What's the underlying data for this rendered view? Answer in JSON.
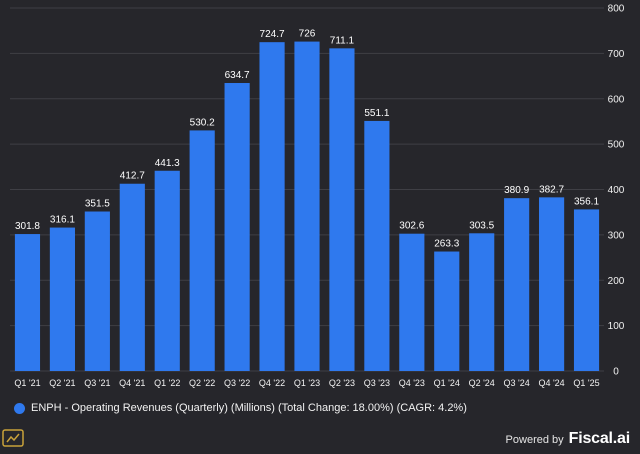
{
  "chart_data": {
    "type": "bar",
    "categories": [
      "Q1 '21",
      "Q2 '21",
      "Q3 '21",
      "Q4 '21",
      "Q1 '22",
      "Q2 '22",
      "Q3 '22",
      "Q4 '22",
      "Q1 '23",
      "Q2 '23",
      "Q3 '23",
      "Q4 '23",
      "Q1 '24",
      "Q2 '24",
      "Q3 '24",
      "Q4 '24",
      "Q1 '25"
    ],
    "values": [
      301.8,
      316.1,
      351.5,
      412.7,
      441.3,
      530.2,
      634.7,
      724.7,
      726,
      711.1,
      551.1,
      302.6,
      263.3,
      303.5,
      380.9,
      382.7,
      356.1
    ],
    "value_labels": [
      "301.8",
      "316.1",
      "351.5",
      "412.7",
      "441.3",
      "530.2",
      "634.7",
      "724.7",
      "726",
      "711.1",
      "551.1",
      "302.6",
      "263.3",
      "303.5",
      "380.9",
      "382.7",
      "356.1"
    ],
    "yticks": [
      "0",
      "100",
      "200",
      "300",
      "400",
      "500",
      "600",
      "700",
      "800"
    ],
    "ylim": [
      0,
      800
    ],
    "y_axis_side": "right",
    "grid": true,
    "bar_color": "#2f79ee",
    "legend": {
      "label": "ENPH - Operating Revenues (Quarterly) (Millions) (Total Change: 18.00%) (CAGR: 4.2%)",
      "position": "bottom-left"
    }
  },
  "footer": {
    "powered_by": "Powered by",
    "brand": "Fiscal.ai"
  },
  "colors": {
    "background": "#26262b",
    "grid": "#3f3f45",
    "text": "#f2f2f2",
    "bar": "#2f79ee"
  }
}
